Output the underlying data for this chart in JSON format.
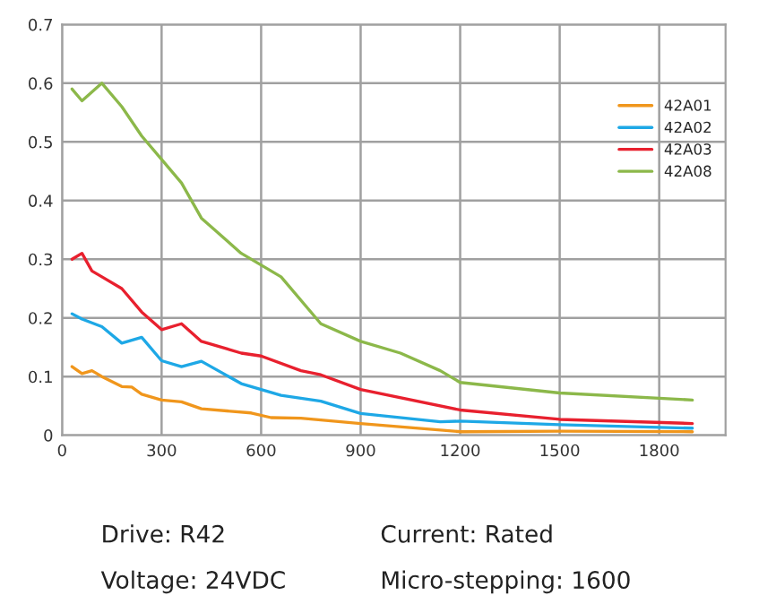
{
  "chart_data": {
    "type": "line",
    "xlim": [
      0,
      2000
    ],
    "xticks": [
      0,
      300,
      600,
      900,
      1200,
      1500,
      1800
    ],
    "ylim": [
      0,
      0.7
    ],
    "yticks": [
      0,
      0.1,
      0.2,
      0.3,
      0.4,
      0.5,
      0.6,
      0.7
    ],
    "grid": true,
    "legend": "right",
    "series": [
      {
        "name": "42A01",
        "color": "#f0961c",
        "x": [
          30,
          60,
          90,
          120,
          180,
          210,
          240,
          300,
          360,
          420,
          570,
          630,
          720,
          900,
          1200,
          1500,
          1900
        ],
        "values": [
          0.117,
          0.105,
          0.11,
          0.1,
          0.083,
          0.082,
          0.07,
          0.06,
          0.057,
          0.045,
          0.038,
          0.03,
          0.029,
          0.02,
          0.006,
          0.007,
          0.006
        ]
      },
      {
        "name": "42A02",
        "color": "#1ea8e6",
        "x": [
          30,
          60,
          120,
          180,
          240,
          300,
          360,
          420,
          540,
          660,
          780,
          900,
          1140,
          1200,
          1500,
          1900
        ],
        "values": [
          0.207,
          0.198,
          0.185,
          0.157,
          0.167,
          0.127,
          0.117,
          0.126,
          0.088,
          0.068,
          0.058,
          0.037,
          0.023,
          0.024,
          0.018,
          0.012
        ]
      },
      {
        "name": "42A03",
        "color": "#e8202e",
        "x": [
          30,
          60,
          90,
          120,
          180,
          240,
          300,
          360,
          420,
          540,
          600,
          720,
          780,
          900,
          1200,
          1500,
          1900
        ],
        "values": [
          0.3,
          0.31,
          0.28,
          0.27,
          0.25,
          0.21,
          0.18,
          0.19,
          0.16,
          0.14,
          0.135,
          0.11,
          0.103,
          0.078,
          0.043,
          0.027,
          0.02
        ]
      },
      {
        "name": "42A08",
        "color": "#8cb84a",
        "x": [
          30,
          60,
          120,
          180,
          240,
          300,
          360,
          420,
          540,
          660,
          780,
          900,
          1020,
          1140,
          1200,
          1500,
          1900
        ],
        "values": [
          0.59,
          0.57,
          0.6,
          0.56,
          0.51,
          0.47,
          0.43,
          0.37,
          0.31,
          0.27,
          0.19,
          0.16,
          0.14,
          0.11,
          0.09,
          0.072,
          0.06
        ]
      }
    ],
    "annotations": [
      "Drive: R42",
      "Current: Rated",
      "Voltage: 24VDC",
      "Micro-stepping: 1600"
    ]
  }
}
